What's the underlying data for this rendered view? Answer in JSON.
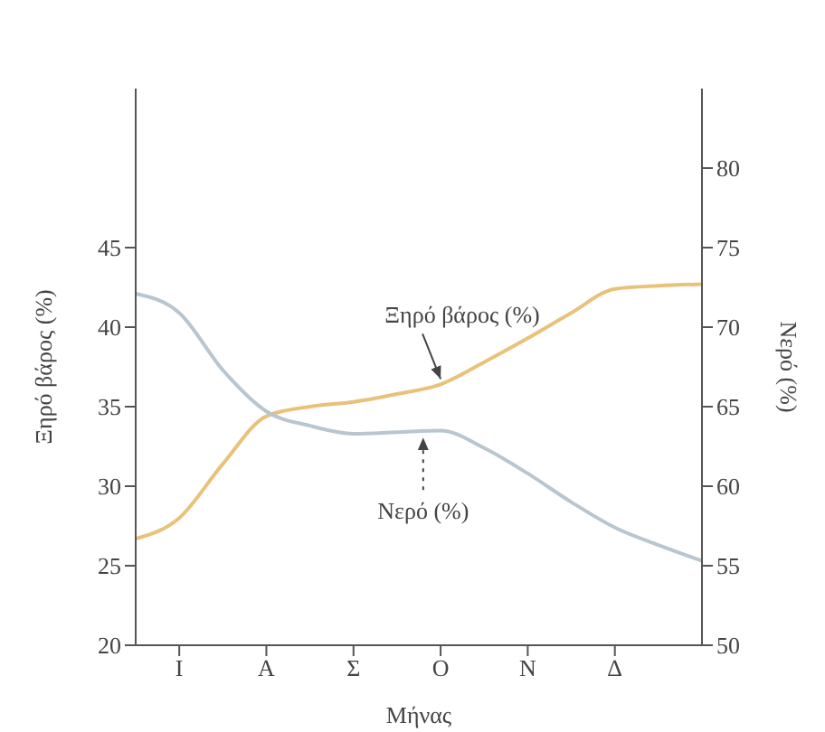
{
  "chart_data": {
    "type": "line",
    "xlabel": "Μήνας",
    "ylabel": "Ξηρό βάρος (%)",
    "y2label": "Νερό (%)",
    "categories": [
      null,
      "Ι",
      null,
      "Α",
      null,
      "Σ",
      null,
      "Ο",
      null,
      "Ν",
      null,
      "Δ",
      null,
      null
    ],
    "ylim": [
      20,
      55
    ],
    "yticks": [
      20,
      25,
      30,
      35,
      40,
      45
    ],
    "y2lim": [
      50,
      85
    ],
    "y2ticks": [
      50,
      55,
      60,
      65,
      70,
      75,
      80
    ],
    "series": [
      {
        "color": "#e9c27a",
        "values": [
          26.7,
          28,
          31.4,
          34.4,
          35,
          35.3,
          35.8,
          36.4,
          37.8,
          39.3,
          40.9,
          42.4,
          42.6,
          42.7
        ]
      },
      {
        "color": "#b9c6cf",
        "axis": "y2",
        "values": [
          72.1,
          70.9,
          67.3,
          64.7,
          63.8,
          63.3,
          63.4,
          63.5,
          62.4,
          60.8,
          59,
          57.4,
          56.3,
          55.3
        ]
      }
    ],
    "annotations": [
      {
        "text": "Ξηρό βάρος (%)",
        "x": "Ο",
        "y": 36.4
      },
      "Νερό (%)"
    ],
    "marker": "none",
    "line_style": "solid"
  }
}
